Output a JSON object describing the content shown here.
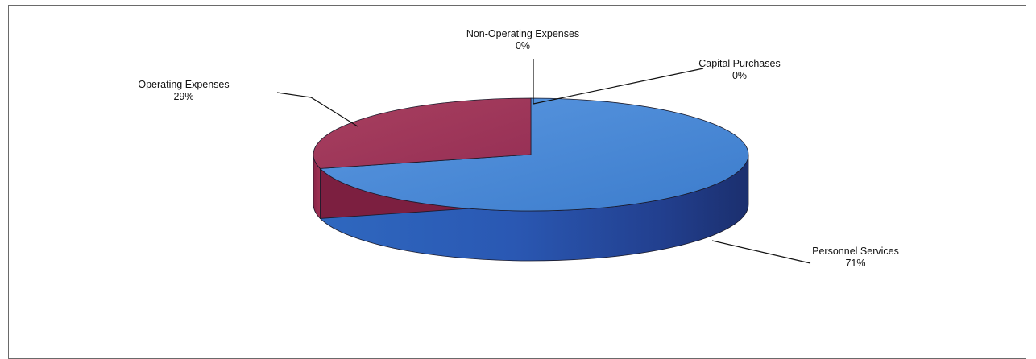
{
  "chart_data": {
    "type": "pie",
    "title": "",
    "slices": [
      {
        "label": "Personnel Services",
        "value": 71,
        "value_label": "71%",
        "color": "#3f80d0"
      },
      {
        "label": "Operating Expenses",
        "value": 29,
        "value_label": "29%",
        "color": "#a3385c"
      },
      {
        "label": "Non-Operating Expenses",
        "value": 0,
        "value_label": "0%",
        "color": "#6a2b63"
      },
      {
        "label": "Capital Purchases",
        "value": 0,
        "value_label": "0%",
        "color": "#4a4a8a"
      }
    ],
    "style": "3d-tilted",
    "legend": "none",
    "labels": "outside with leader lines"
  }
}
